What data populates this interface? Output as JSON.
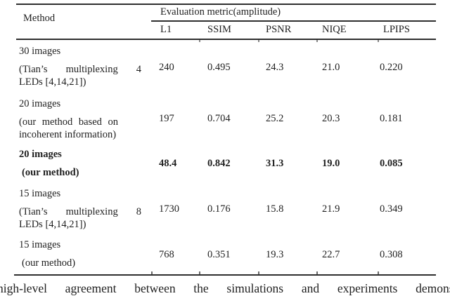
{
  "colors": {
    "background": "#ffffff",
    "ink": "#1f1f1f",
    "rule": "#2e2e2e"
  },
  "table": {
    "header": {
      "method_label": "Method",
      "metric_group_label": "Evaluation metric(amplitude)",
      "columns": [
        "L1",
        "SSIM",
        "PSNR",
        "NIQE",
        "LPIPS"
      ]
    },
    "rows": [
      {
        "method_lines": [
          "30 images",
          "(Tian’s multiplexing 4",
          "LEDs [4,14,21])"
        ],
        "bold": false,
        "values": [
          "240",
          "0.495",
          "24.3",
          "21.0",
          "0.220"
        ]
      },
      {
        "method_lines": [
          "20 images",
          "(our method based on",
          "incoherent information)"
        ],
        "bold": false,
        "values": [
          "197",
          "0.704",
          "25.2",
          "20.3",
          "0.181"
        ]
      },
      {
        "method_lines": [
          "20 images",
          "(our method)"
        ],
        "bold": true,
        "values": [
          "48.4",
          "0.842",
          "31.3",
          "19.0",
          "0.085"
        ]
      },
      {
        "method_lines": [
          "15 images",
          "(Tian’s multiplexing 8",
          "LEDs [4,14,21])"
        ],
        "bold": false,
        "values": [
          "1730",
          "0.176",
          "15.8",
          "21.9",
          "0.349"
        ]
      },
      {
        "method_lines": [
          "15 images",
          "(our method)"
        ],
        "bold": false,
        "values": [
          "768",
          "0.351",
          "19.3",
          "22.7",
          "0.308"
        ]
      }
    ]
  },
  "body_text": "high-level agreement between the simulations and experiments demonstra"
}
